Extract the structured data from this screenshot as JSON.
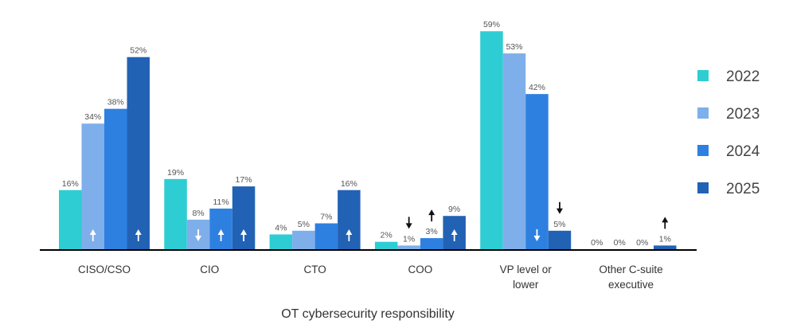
{
  "chart_data": {
    "type": "bar",
    "xlabel": "OT cybersecurity responsibility",
    "ylabel": "",
    "ylim": [
      0,
      60
    ],
    "grid": false,
    "legend_position": "right",
    "categories": [
      [
        "CISO/CSO"
      ],
      [
        "CIO"
      ],
      [
        "CTO"
      ],
      [
        "COO"
      ],
      [
        "VP level or",
        "lower"
      ],
      [
        "Other C-suite",
        "executive"
      ]
    ],
    "series": [
      {
        "name": "2022",
        "color": "#2ECDD3",
        "values": [
          16,
          19,
          4,
          2,
          59,
          0
        ],
        "labels": [
          "16%",
          "19%",
          "4%",
          "2%",
          "59%",
          "0%"
        ],
        "arrows": [
          "",
          "",
          "",
          "",
          "",
          ""
        ]
      },
      {
        "name": "2023",
        "color": "#7FAFEA",
        "values": [
          34,
          8,
          5,
          1,
          53,
          0
        ],
        "labels": [
          "34%",
          "8%",
          "5%",
          "1%",
          "53%",
          "0%"
        ],
        "arrows": [
          "up",
          "down",
          "",
          "down",
          "",
          ""
        ]
      },
      {
        "name": "2024",
        "color": "#2E80E0",
        "values": [
          38,
          11,
          7,
          3,
          42,
          0
        ],
        "labels": [
          "38%",
          "11%",
          "7%",
          "3%",
          "42%",
          "0%"
        ],
        "arrows": [
          "",
          "up",
          "",
          "up",
          "down",
          ""
        ]
      },
      {
        "name": "2025",
        "color": "#2262B5",
        "values": [
          52,
          17,
          16,
          9,
          5,
          1
        ],
        "labels": [
          "52%",
          "17%",
          "16%",
          "9%",
          "5%",
          "1%"
        ],
        "arrows": [
          "up",
          "up",
          "up",
          "up",
          "down",
          "up"
        ]
      }
    ]
  }
}
